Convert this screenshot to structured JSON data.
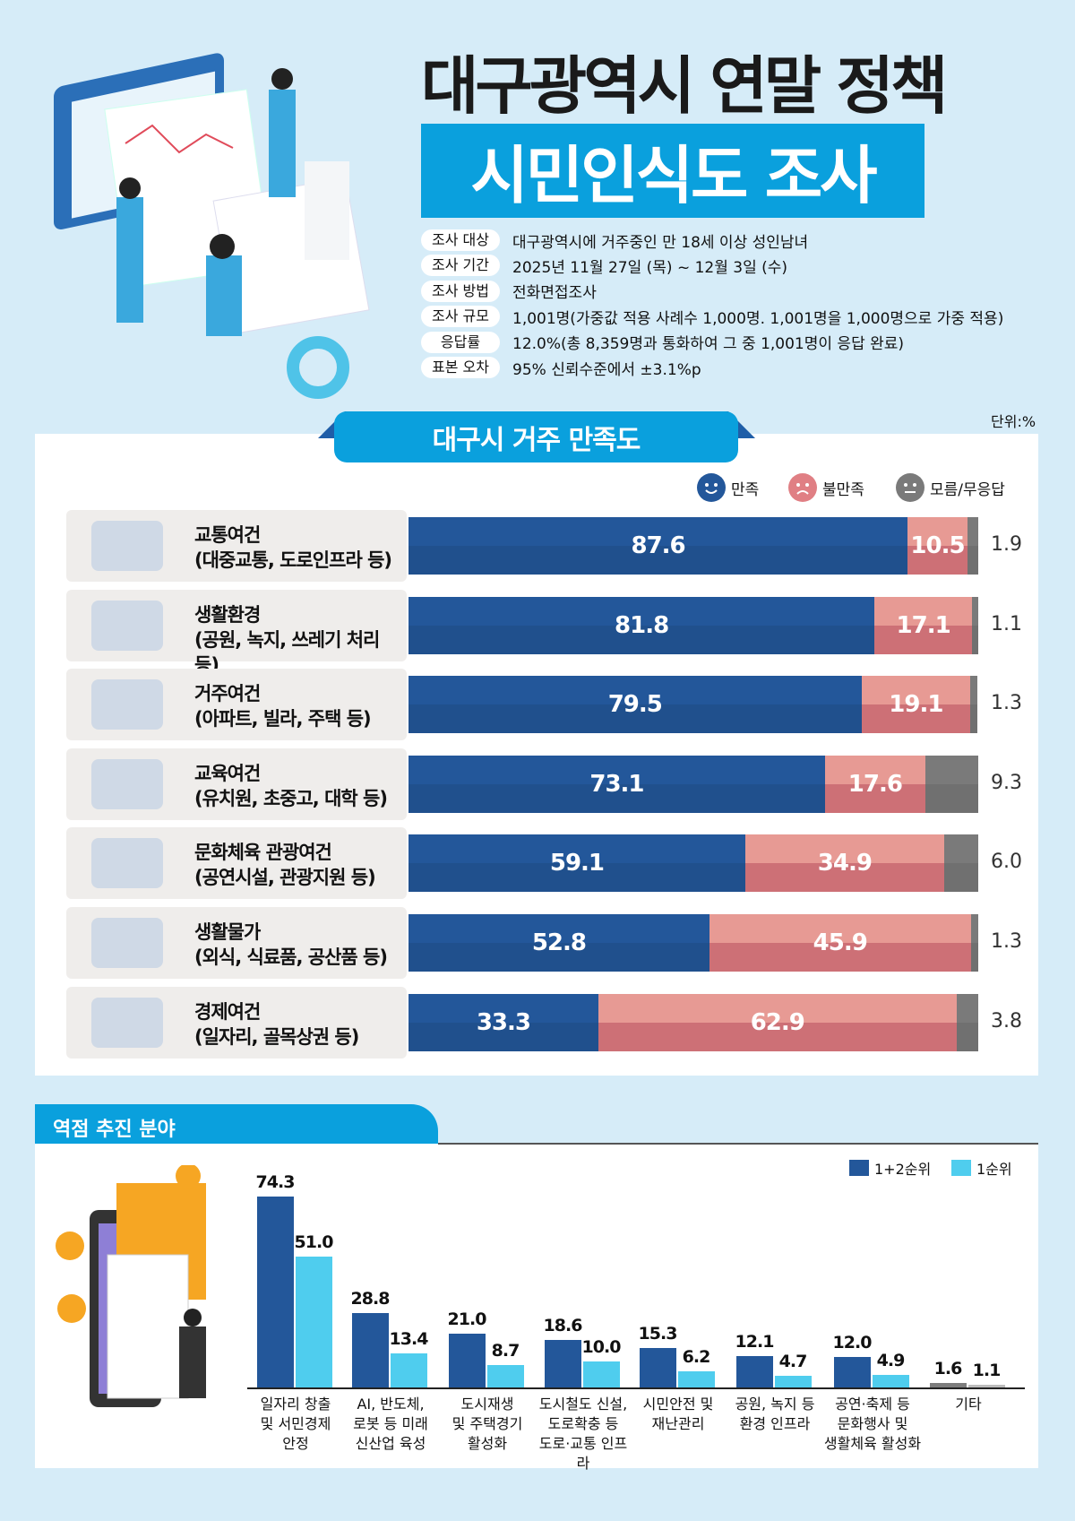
{
  "title": {
    "line1": "대구광역시 연말 정책",
    "line2": "시민인식도 조사"
  },
  "survey_info": [
    {
      "key": "조사 대상",
      "value": "대구광역시에 거주중인 만 18세 이상 성인남녀"
    },
    {
      "key": "조사 기간",
      "value": "2025년 11월 27일 (목) ~ 12월 3일 (수)"
    },
    {
      "key": "조사 방법",
      "value": "전화면접조사"
    },
    {
      "key": "조사 규모",
      "value": "1,001명(가중값 적용 사례수 1,000명. 1,001명을 1,000명으로 가중 적용)"
    },
    {
      "key": "응답률",
      "value": "12.0%(총 8,359명과 통화하여 그 중 1,001명이 응답 완료)"
    },
    {
      "key": "표본 오차",
      "value": "95% 신뢰수준에서 ±3.1%p"
    }
  ],
  "unit": "단위:%",
  "colors": {
    "satisfied": "#23579a",
    "dissatisfied": "#e07f84",
    "unknown": "#7a7a7a",
    "rank12": "#23579a",
    "rank1": "#4fcdee",
    "etc12": "#7d7d7d",
    "etc1": "#bdbdbd",
    "accent": "#0aa0dd"
  },
  "chart_data": [
    {
      "type": "bar",
      "orientation": "horizontal-stacked",
      "title": "대구시 거주 만족도",
      "legend": [
        "만족",
        "불만족",
        "모름/무응답"
      ],
      "legend_icons": [
        "happy-face-icon",
        "sad-face-icon",
        "neutral-face-icon"
      ],
      "categories": [
        {
          "name": "교통여건",
          "sub": "(대중교통, 도로인프라 등)",
          "icon": "bus-icon"
        },
        {
          "name": "생활환경",
          "sub": "(공원, 녹지, 쓰레기 처리 등)",
          "icon": "park-icon"
        },
        {
          "name": "거주여건",
          "sub": "(아파트, 빌라, 주택 등)",
          "icon": "house-icon"
        },
        {
          "name": "교육여건",
          "sub": "(유치원, 초중고, 대학 등)",
          "icon": "school-icon"
        },
        {
          "name": "문화체육 관광여건",
          "sub": "(공연시설, 관광지원 등)",
          "icon": "tourism-icon"
        },
        {
          "name": "생활물가",
          "sub": "(외식, 식료품, 공산품 등)",
          "icon": "basket-icon"
        },
        {
          "name": "경제여건",
          "sub": "(일자리, 골목상권 등)",
          "icon": "money-icon"
        }
      ],
      "series": [
        {
          "name": "만족",
          "values": [
            87.6,
            81.8,
            79.5,
            73.1,
            59.1,
            52.8,
            33.3
          ]
        },
        {
          "name": "불만족",
          "values": [
            10.5,
            17.1,
            19.1,
            17.6,
            34.9,
            45.9,
            62.9
          ]
        },
        {
          "name": "모름/무응답",
          "values": [
            1.9,
            1.1,
            1.3,
            9.3,
            6.0,
            1.3,
            3.8
          ]
        }
      ]
    },
    {
      "type": "bar",
      "title": "역점 추진 분야",
      "legend": [
        "1+2순위",
        "1순위"
      ],
      "categories": [
        "일자리 창출\n및 서민경제\n안정",
        "AI, 반도체,\n로봇 등 미래\n신산업 육성",
        "도시재생\n및 주택경기\n활성화",
        "도시철도 신설,\n도로확충 등\n도로·교통 인프라",
        "시민안전 및\n재난관리",
        "공원, 녹지 등\n환경 인프라",
        "공연·축제 등\n문화행사 및\n생활체육 활성화",
        "기타"
      ],
      "series": [
        {
          "name": "1+2순위",
          "values": [
            74.3,
            28.8,
            21.0,
            18.6,
            15.3,
            12.1,
            12.0,
            1.6
          ]
        },
        {
          "name": "1순위",
          "values": [
            51.0,
            13.4,
            8.7,
            10.0,
            6.2,
            4.7,
            4.9,
            1.1
          ]
        }
      ]
    }
  ]
}
